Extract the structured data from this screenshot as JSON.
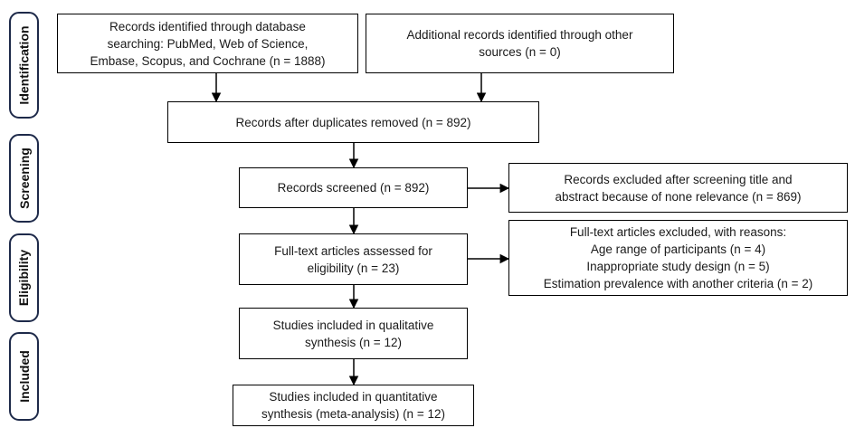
{
  "stages": {
    "identification": "Identification",
    "screening": "Screening",
    "eligibility": "Eligibility",
    "included": "Included"
  },
  "boxes": {
    "database": {
      "lines": [
        "Records identified through database",
        "searching: PubMed, Web of Science,",
        "Embase, Scopus, and Cochrane (n = 1888)"
      ]
    },
    "other_sources": {
      "lines": [
        "Additional records identified through other",
        "sources (n = 0)"
      ]
    },
    "duplicates_removed": {
      "lines": [
        "Records after duplicates removed (n = 892)"
      ]
    },
    "screened": {
      "lines": [
        "Records screened (n = 892)"
      ]
    },
    "excluded_screening": {
      "lines": [
        "Records excluded after screening title and",
        "abstract because of none relevance (n = 869)"
      ]
    },
    "fulltext_assessed": {
      "lines": [
        "Full-text articles assessed for",
        "eligibility (n = 23)"
      ]
    },
    "fulltext_excluded": {
      "lines": [
        "Full-text articles excluded, with reasons:",
        "Age range of participants (n = 4)",
        "Inappropriate study design (n = 5)",
        "Estimation prevalence with another criteria (n = 2)"
      ]
    },
    "qualitative": {
      "lines": [
        "Studies included in qualitative",
        "synthesis (n = 12)"
      ]
    },
    "quantitative": {
      "lines": [
        "Studies included in quantitative",
        "synthesis (meta-analysis) (n = 12)"
      ]
    }
  }
}
